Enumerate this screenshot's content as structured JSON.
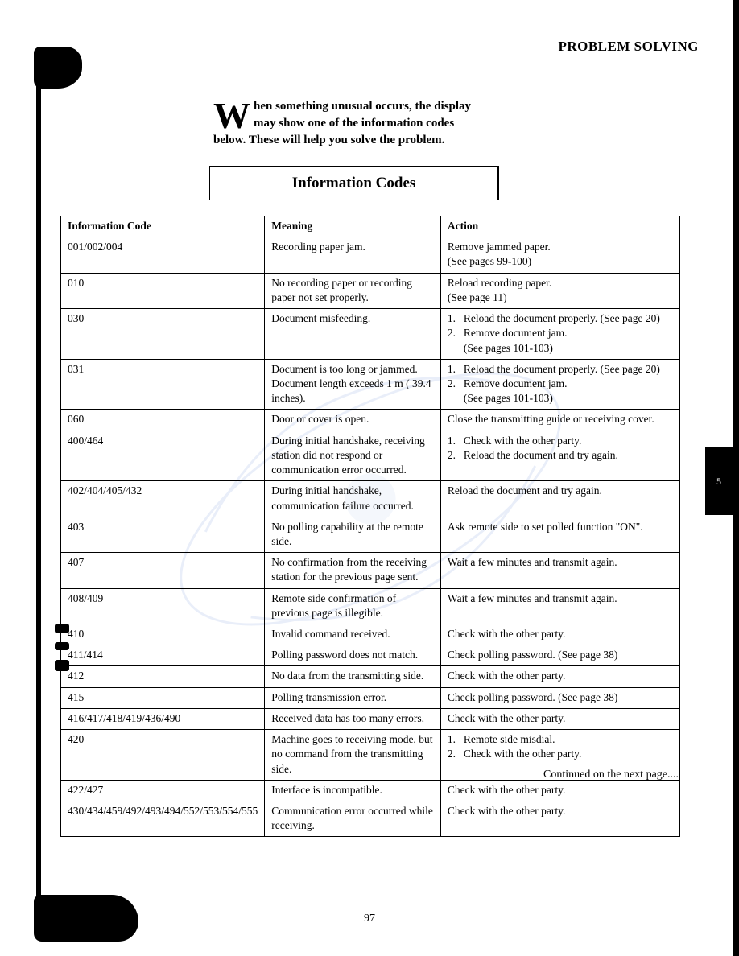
{
  "header": {
    "title": "PROBLEM SOLVING"
  },
  "intro": {
    "dropcap": "W",
    "line1": "hen something unusual occurs, the display",
    "line2": "may show one of the information codes",
    "line3": "below.  These will help you solve the problem."
  },
  "section_title": "Information Codes",
  "table": {
    "headers": {
      "code": "Information Code",
      "meaning": "Meaning",
      "action": "Action"
    },
    "rows": [
      {
        "code": "001/002/004",
        "meaning": "Recording paper jam.",
        "action_lines": [
          "Remove jammed paper.",
          "(See pages 99-100)"
        ]
      },
      {
        "code": "010",
        "meaning": "No recording paper or recording paper not set properly.",
        "action_lines": [
          "Reload recording paper.",
          "(See page 11)"
        ]
      },
      {
        "code": "030",
        "meaning": "Document misfeeding.",
        "action_numbered": [
          {
            "n": "1.",
            "t": "Reload the document properly. (See page 20)"
          },
          {
            "n": "2.",
            "t": "Remove document jam."
          }
        ],
        "action_trailing": "(See pages 101-103)"
      },
      {
        "code": "031",
        "meaning": "Document  is too long or jammed. Document length exceeds 1 m  ( 39.4 inches).",
        "action_numbered": [
          {
            "n": "1.",
            "t": "Reload the document properly. (See page 20)"
          },
          {
            "n": "2.",
            "t": "Remove document jam."
          }
        ],
        "action_trailing": "(See pages 101-103)"
      },
      {
        "code": "060",
        "meaning": "Door or cover is open.",
        "action_lines": [
          "Close the transmitting guide or receiving cover."
        ]
      },
      {
        "code": "400/464",
        "meaning": "During initial handshake, receiving station did not respond or communication error occurred.",
        "action_numbered": [
          {
            "n": "1.",
            "t": "Check with the other party."
          },
          {
            "n": "2.",
            "t": "Reload the document and try again."
          }
        ]
      },
      {
        "code": "402/404/405/432",
        "meaning": "During initial handshake, communication failure occurred.",
        "action_lines": [
          "Reload the document and try again."
        ]
      },
      {
        "code": "403",
        "meaning": "No polling capability at the remote side.",
        "action_lines": [
          "Ask remote side to set polled function \"ON\"."
        ]
      },
      {
        "code": "407",
        "meaning": "No confirmation from the receiving station for the previous page sent.",
        "action_lines": [
          "Wait a few minutes and transmit again."
        ]
      },
      {
        "code": "408/409",
        "meaning": "Remote side confirmation of previous page is illegible.",
        "action_lines": [
          "Wait a few minutes and transmit again."
        ]
      },
      {
        "code": "410",
        "meaning": "Invalid command received.",
        "action_lines": [
          "Check with the other party."
        ]
      },
      {
        "code": "411/414",
        "meaning": "Polling password does not match.",
        "action_lines": [
          "Check polling password.  (See page 38)"
        ]
      },
      {
        "code": "412",
        "meaning": "No data from the transmitting side.",
        "action_lines": [
          "Check with the other party."
        ]
      },
      {
        "code": "415",
        "meaning": "Polling transmission error.",
        "action_lines": [
          "Check polling password.  (See page 38)"
        ]
      },
      {
        "code": "416/417/418/419/436/490",
        "meaning": "Received data has too many errors.",
        "action_lines": [
          "Check with the other party."
        ]
      },
      {
        "code": "420",
        "meaning": "Machine goes to receiving mode, but no command from the transmitting side.",
        "action_numbered": [
          {
            "n": "1.",
            "t": "Remote side misdial."
          },
          {
            "n": "2.",
            "t": "Check with the other party."
          }
        ]
      },
      {
        "code": "422/427",
        "meaning": "Interface is incompatible.",
        "action_lines": [
          "Check with the other party."
        ]
      },
      {
        "code": "430/434/459/492/493/494/552/553/554/555",
        "meaning": "Communication error occurred while receiving.",
        "action_lines": [
          "Check with the other party."
        ]
      }
    ]
  },
  "footer_note": "Continued on the next page....",
  "page_number": "97",
  "side_tab": "5",
  "colors": {
    "text": "#000000",
    "background": "#ffffff",
    "watermark": "#6b8fd6"
  }
}
